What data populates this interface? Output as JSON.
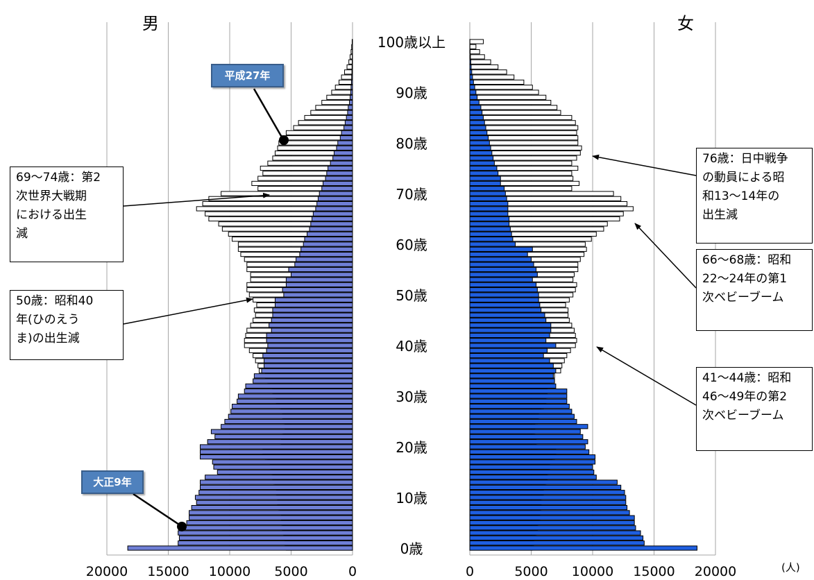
{
  "chart_data": {
    "type": "bar",
    "subtype": "population-pyramid",
    "panels": {
      "male": "男",
      "female": "女"
    },
    "unit": "(人)",
    "age_labels": [
      "0歳",
      "10歳",
      "20歳",
      "30歳",
      "40歳",
      "50歳",
      "60歳",
      "70歳",
      "80歳",
      "90歳",
      "100歳以上"
    ],
    "ages": [
      0,
      1,
      2,
      3,
      4,
      5,
      6,
      7,
      8,
      9,
      10,
      11,
      12,
      13,
      14,
      15,
      16,
      17,
      18,
      19,
      20,
      21,
      22,
      23,
      24,
      25,
      26,
      27,
      28,
      29,
      30,
      31,
      32,
      33,
      34,
      35,
      36,
      37,
      38,
      39,
      40,
      41,
      42,
      43,
      44,
      45,
      46,
      47,
      48,
      49,
      50,
      51,
      52,
      53,
      54,
      55,
      56,
      57,
      58,
      59,
      60,
      61,
      62,
      63,
      64,
      65,
      66,
      67,
      68,
      69,
      70,
      71,
      72,
      73,
      74,
      75,
      76,
      77,
      78,
      79,
      80,
      81,
      82,
      83,
      84,
      85,
      86,
      87,
      88,
      89,
      90,
      91,
      92,
      93,
      94,
      95,
      96,
      97,
      98,
      99,
      100
    ],
    "x_ticks": [
      0,
      5000,
      10000,
      15000,
      20000
    ],
    "xlim": [
      0,
      20000
    ],
    "grid": true,
    "series": [
      {
        "name": "大正9年",
        "style": "filled",
        "male": [
          18300,
          14200,
          14100,
          14200,
          13600,
          13500,
          13300,
          13300,
          13100,
          12700,
          12800,
          12500,
          12400,
          12400,
          12000,
          11000,
          11300,
          11400,
          12400,
          12400,
          12400,
          11800,
          11200,
          11500,
          10700,
          10400,
          10100,
          9900,
          9800,
          9400,
          9300,
          8800,
          8700,
          8100,
          8000,
          7400,
          7200,
          7200,
          7300,
          7000,
          6900,
          7000,
          7000,
          6600,
          6800,
          6600,
          6500,
          6500,
          6300,
          6300,
          5600,
          5700,
          5400,
          5400,
          5000,
          5200,
          4700,
          4600,
          4300,
          4200,
          4000,
          3900,
          3700,
          3500,
          3400,
          3300,
          3200,
          3000,
          2900,
          2800,
          2700,
          2500,
          2400,
          2200,
          2100,
          2000,
          1800,
          1600,
          1500,
          1300,
          1200,
          1000,
          900,
          700,
          600,
          500,
          400,
          350,
          250,
          200,
          150,
          120,
          90,
          70,
          50,
          40,
          30,
          20,
          15,
          10,
          30
        ],
        "female": [
          18500,
          14200,
          14100,
          13900,
          13500,
          13400,
          13400,
          13000,
          12800,
          12700,
          12700,
          12600,
          12300,
          12000,
          10300,
          10100,
          10000,
          10200,
          10200,
          9700,
          9400,
          9600,
          9200,
          9000,
          9600,
          8700,
          8500,
          8300,
          8100,
          7900,
          7900,
          7900,
          7000,
          6900,
          6800,
          7000,
          6800,
          6500,
          6000,
          6300,
          7000,
          6200,
          6500,
          6600,
          6600,
          6200,
          6100,
          5800,
          5700,
          5600,
          5600,
          5500,
          5400,
          5100,
          5500,
          5400,
          5200,
          5000,
          4700,
          5100,
          3700,
          3500,
          3400,
          3300,
          3200,
          3200,
          3100,
          3100,
          3100,
          3000,
          2900,
          2800,
          2500,
          2500,
          2300,
          2200,
          2000,
          1900,
          1800,
          1700,
          1600,
          1500,
          1400,
          1300,
          1200,
          1100,
          1000,
          900,
          750,
          600,
          500,
          400,
          300,
          220,
          160,
          110,
          80,
          50,
          30,
          15,
          10
        ]
      },
      {
        "name": "平成27年",
        "style": "outline",
        "male": [
          5400,
          5500,
          5600,
          5600,
          5700,
          5800,
          5800,
          5900,
          6000,
          6100,
          6100,
          6200,
          6300,
          6400,
          6500,
          6600,
          6700,
          6900,
          7100,
          7300,
          5900,
          5800,
          5700,
          5600,
          5500,
          5600,
          5700,
          5800,
          5900,
          6200,
          6400,
          6500,
          6700,
          6900,
          7100,
          7600,
          7700,
          7900,
          8100,
          8400,
          8800,
          8800,
          8700,
          8600,
          8300,
          8100,
          7900,
          8000,
          7800,
          8100,
          8400,
          8600,
          8600,
          8300,
          8300,
          8600,
          8600,
          8800,
          9100,
          9300,
          9300,
          9800,
          10100,
          10600,
          10900,
          11700,
          12000,
          12700,
          12200,
          11700,
          10700,
          7700,
          8200,
          7700,
          7300,
          7500,
          6900,
          6500,
          6300,
          6100,
          6000,
          5800,
          5400,
          4800,
          4400,
          3900,
          3400,
          3000,
          2500,
          2100,
          1700,
          1400,
          1100,
          900,
          650,
          450,
          300,
          200,
          120,
          70,
          30
        ],
        "female": [
          5100,
          5200,
          5300,
          5400,
          5500,
          5600,
          5700,
          5700,
          5800,
          5800,
          5900,
          6000,
          6100,
          6200,
          6300,
          6400,
          6500,
          6700,
          6900,
          7000,
          5500,
          5400,
          5300,
          5200,
          5300,
          5500,
          5600,
          5800,
          6000,
          6200,
          6300,
          6300,
          6500,
          6700,
          6900,
          7400,
          7500,
          7700,
          7900,
          8200,
          8600,
          8700,
          8600,
          8500,
          8300,
          8100,
          8000,
          8000,
          7800,
          8100,
          8400,
          8600,
          8700,
          8400,
          8500,
          8800,
          8800,
          9000,
          9300,
          9500,
          9400,
          9900,
          10300,
          10900,
          11200,
          12200,
          12500,
          13300,
          12800,
          12300,
          11700,
          8300,
          8900,
          8400,
          8300,
          8800,
          8300,
          8700,
          9000,
          9100,
          8800,
          8800,
          8700,
          8800,
          8600,
          8300,
          7400,
          7100,
          6600,
          6200,
          5600,
          5100,
          4400,
          3600,
          3000,
          2300,
          1700,
          1200,
          800,
          500,
          1100
        ]
      }
    ],
    "annotations": [
      "69〜74歳：第2\n次世界大戦期\nにおける出生\n減",
      "50歳：昭和40\n年(ひのえう\nま)の出生減",
      "76歳：日中戦争\nの動員による昭\n和13〜14年の\n出生減",
      "66〜68歳：昭和\n22〜24年の第1\n次ベビーブーム",
      "41〜44歳：昭和\n46〜49年の第2\n次ベビーブーム"
    ]
  }
}
